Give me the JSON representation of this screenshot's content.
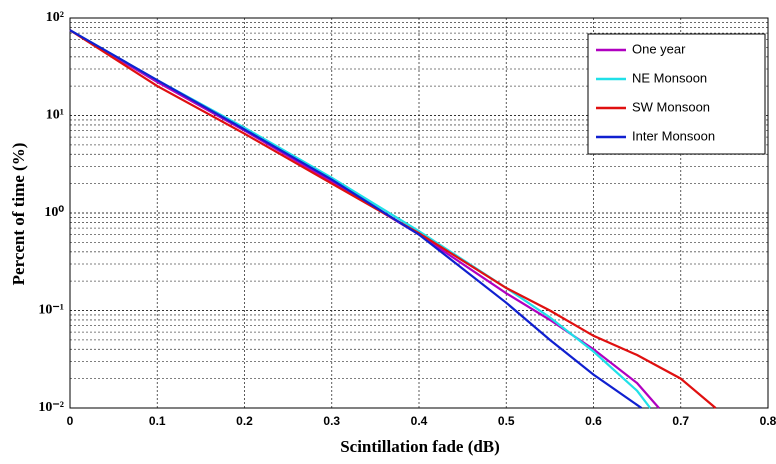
{
  "chart_data": {
    "type": "line",
    "xlabel": "Scintillation fade (dB)",
    "ylabel": "Percent of time (%)",
    "xlim": [
      0,
      0.8
    ],
    "xticks": [
      0,
      0.1,
      0.2,
      0.3,
      0.4,
      0.5,
      0.6,
      0.7,
      0.8
    ],
    "ylim": [
      0.01,
      100
    ],
    "yscale": "log",
    "yticks": [
      {
        "value": 0.01,
        "label": "10⁻²"
      },
      {
        "value": 0.1,
        "label": "10⁻¹"
      },
      {
        "value": 1,
        "label": "10⁰"
      },
      {
        "value": 10,
        "label": "10¹"
      },
      {
        "value": 100,
        "label": "10²"
      }
    ],
    "grid": true,
    "legend": "upper right",
    "series": [
      {
        "name": "One year",
        "color": "#b000c0",
        "x": [
          0,
          0.1,
          0.2,
          0.3,
          0.4,
          0.5,
          0.55,
          0.6,
          0.65,
          0.675
        ],
        "values": [
          75,
          22,
          7,
          2.1,
          0.6,
          0.15,
          0.08,
          0.04,
          0.018,
          0.01
        ]
      },
      {
        "name": "NE Monsoon",
        "color": "#20e0e8",
        "x": [
          0,
          0.1,
          0.2,
          0.3,
          0.4,
          0.5,
          0.55,
          0.6,
          0.65,
          0.665
        ],
        "values": [
          75,
          23,
          7.5,
          2.3,
          0.65,
          0.17,
          0.085,
          0.038,
          0.015,
          0.01
        ]
      },
      {
        "name": "SW Monsoon",
        "color": "#e01010",
        "x": [
          0,
          0.1,
          0.2,
          0.3,
          0.4,
          0.5,
          0.55,
          0.6,
          0.65,
          0.7,
          0.74
        ],
        "values": [
          75,
          20,
          6.5,
          2.0,
          0.62,
          0.17,
          0.1,
          0.055,
          0.035,
          0.02,
          0.01
        ]
      },
      {
        "name": "Inter Monsoon",
        "color": "#1020d0",
        "x": [
          0,
          0.1,
          0.2,
          0.3,
          0.4,
          0.5,
          0.55,
          0.6,
          0.655
        ],
        "values": [
          75,
          23,
          7.2,
          2.2,
          0.6,
          0.12,
          0.05,
          0.022,
          0.01
        ]
      }
    ]
  }
}
